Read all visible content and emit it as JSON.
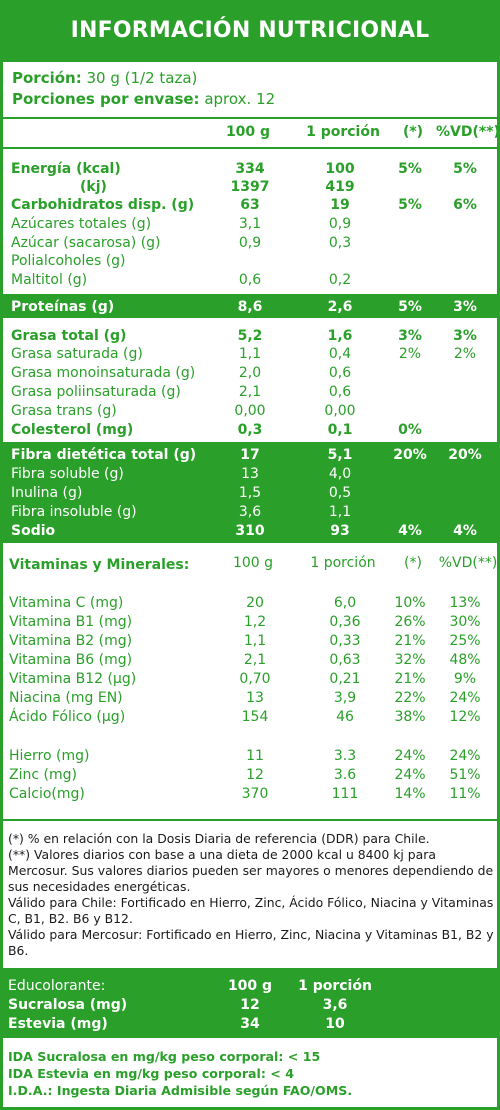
{
  "title": "INFORMACIÓN NUTRICIONAL",
  "serving": {
    "label": "Porción:",
    "value": "30 g (1/2 taza)",
    "per_pack_label": "Porciones por envase:",
    "per_pack_value": "aprox. 12"
  },
  "table_header": {
    "c100": "100 g",
    "cport": "1 porción",
    "star": "(*)",
    "vd": "%VD(**)"
  },
  "rows": [
    {
      "label": "Energía (kcal)",
      "v100": "334",
      "vport": "100",
      "star": "5%",
      "vd": "5%"
    },
    {
      "label": "(kj)",
      "v100": "1397",
      "vport": "419",
      "star": "",
      "vd": ""
    },
    {
      "label": "Carbohidratos disp. (g)",
      "v100": "63",
      "vport": "19",
      "star": "5%",
      "vd": "6%"
    },
    {
      "label": "Azúcares totales (g)",
      "v100": "3,1",
      "vport": "0,9",
      "star": "",
      "vd": ""
    },
    {
      "label": "Azúcar (sacarosa) (g)",
      "v100": "0,9",
      "vport": "0,3",
      "star": "",
      "vd": ""
    },
    {
      "label": "Polialcoholes (g)",
      "v100": "",
      "vport": "",
      "star": "",
      "vd": ""
    },
    {
      "label": "Maltitol (g)",
      "v100": "0,6",
      "vport": "0,2",
      "star": "",
      "vd": ""
    },
    {
      "label": "Proteínas (g)",
      "v100": "8,6",
      "vport": "2,6",
      "star": "5%",
      "vd": "3%"
    },
    {
      "label": "Grasa total (g)",
      "v100": "5,2",
      "vport": "1,6",
      "star": "3%",
      "vd": "3%"
    },
    {
      "label": "Grasa saturada (g)",
      "v100": "1,1",
      "vport": "0,4",
      "star": "2%",
      "vd": "2%"
    },
    {
      "label": "Grasa monoinsaturada (g)",
      "v100": "2,0",
      "vport": "0,6",
      "star": "",
      "vd": ""
    },
    {
      "label": "Grasa poliinsaturada (g)",
      "v100": "2,1",
      "vport": "0,6",
      "star": "",
      "vd": ""
    },
    {
      "label": "Grasa trans (g)",
      "v100": "0,00",
      "vport": "0,00",
      "star": "",
      "vd": ""
    },
    {
      "label": "Colesterol (mg)",
      "v100": "0,3",
      "vport": "0,1",
      "star": "0%",
      "vd": ""
    },
    {
      "label": "Fibra dietética total (g)",
      "v100": "17",
      "vport": "5,1",
      "star": "20%",
      "vd": "20%"
    },
    {
      "label": "Fibra soluble (g)",
      "v100": "13",
      "vport": "4,0",
      "star": "",
      "vd": ""
    },
    {
      "label": "Inulina (g)",
      "v100": "1,5",
      "vport": "0,5",
      "star": "",
      "vd": ""
    },
    {
      "label": "Fibra insoluble (g)",
      "v100": "3,6",
      "vport": "1,1",
      "star": "",
      "vd": ""
    },
    {
      "label": "Sodio",
      "v100": "310",
      "vport": "93",
      "star": "4%",
      "vd": "4%"
    }
  ],
  "vit_header": {
    "label": "Vitaminas y Minerales:",
    "c100": "100 g",
    "cport": "1 porción",
    "star": "(*)",
    "vd": "%VD(**)"
  },
  "vitamins": [
    {
      "label": "Vitamina C (mg)",
      "v100": "20",
      "vport": "6,0",
      "star": "10%",
      "vd": "13%"
    },
    {
      "label": "Vitamina B1 (mg)",
      "v100": "1,2",
      "vport": "0,36",
      "star": "26%",
      "vd": "30%"
    },
    {
      "label": "Vitamina B2 (mg)",
      "v100": "1,1",
      "vport": "0,33",
      "star": "21%",
      "vd": "25%"
    },
    {
      "label": "Vitamina B6 (mg)",
      "v100": "2,1",
      "vport": "0,63",
      "star": "32%",
      "vd": "48%"
    },
    {
      "label": "Vitamina B12 (µg)",
      "v100": "0,70",
      "vport": "0,21",
      "star": "21%",
      "vd": "9%"
    },
    {
      "label": "Niacina (mg EN)",
      "v100": "13",
      "vport": "3,9",
      "star": "22%",
      "vd": "24%"
    },
    {
      "label": "Ácido Fólico (µg)",
      "v100": "154",
      "vport": "46",
      "star": "38%",
      "vd": "12%"
    },
    {
      "label": "Hierro (mg)",
      "v100": "11",
      "vport": "3.3",
      "star": "24%",
      "vd": "24%"
    },
    {
      "label": "Zinc (mg)",
      "v100": "12",
      "vport": "3.6",
      "star": "24%",
      "vd": "51%"
    },
    {
      "label": "Calcio(mg)",
      "v100": "370",
      "vport": "111",
      "star": "14%",
      "vd": "11%"
    }
  ],
  "footnotes": [
    "(*) % en relación con la Dosis Diaria de referencia (DDR) para Chile.",
    "(**) Valores diarios con base a una dieta de 2000 kcal u 8400 kj para Mercosur. Sus valores diarios pueden ser mayores o menores dependiendo de sus necesidades energéticas.",
    "Válido para Chile: Fortificado en Hierro, Zinc, Ácido Fólico, Niacina y Vitaminas C, B1, B2. B6 y B12.",
    "Válido para Mercosur: Fortificado en Hierro, Zinc, Niacina y Vitaminas B1, B2 y B6."
  ],
  "sweetener": {
    "label": "Educolorante:",
    "c100": "100 g",
    "cport": "1 porción",
    "rows": [
      {
        "label": "Sucralosa (mg)",
        "v100": "12",
        "vport": "3,6"
      },
      {
        "label": "Estevia (mg)",
        "v100": "34",
        "vport": "10"
      }
    ]
  },
  "ida": [
    "IDA Sucralosa en mg/kg peso corporal: < 15",
    "IDA Estevia en mg/kg peso corporal: < 4",
    "I.D.A.: Ingesta Diaria Admisible según FAO/OMS."
  ]
}
